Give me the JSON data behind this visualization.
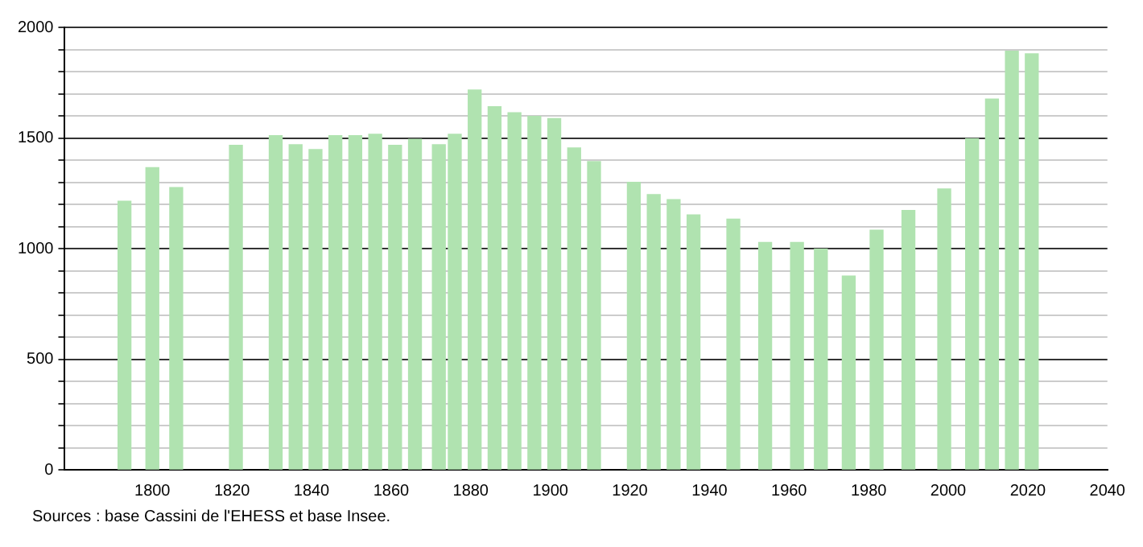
{
  "chart_data": {
    "type": "bar",
    "color": "#b0e3b0",
    "x": [
      1793,
      1800,
      1806,
      1821,
      1831,
      1836,
      1841,
      1846,
      1851,
      1856,
      1861,
      1866,
      1872,
      1876,
      1881,
      1886,
      1891,
      1896,
      1901,
      1906,
      1911,
      1921,
      1926,
      1931,
      1936,
      1946,
      1954,
      1962,
      1968,
      1975,
      1982,
      1990,
      1999,
      2006,
      2011,
      2016,
      2021
    ],
    "values": [
      1214,
      1366,
      1276,
      1467,
      1510,
      1469,
      1448,
      1510,
      1510,
      1517,
      1467,
      1494,
      1469,
      1517,
      1717,
      1641,
      1614,
      1598,
      1588,
      1455,
      1393,
      1299,
      1244,
      1221,
      1152,
      1133,
      1028,
      1028,
      998,
      876,
      1083,
      1172,
      1269,
      1497,
      1676,
      1892,
      1880
    ],
    "xlim": [
      1778,
      2040
    ],
    "xticks": [
      1800,
      1820,
      1840,
      1860,
      1880,
      1900,
      1920,
      1940,
      1960,
      1980,
      2000,
      2020,
      2040
    ],
    "ylim": [
      0,
      2000
    ],
    "yticks": [
      0,
      {
        "value": 100,
        "label": null
      },
      {
        "value": 200,
        "label": null
      },
      {
        "value": 300,
        "label": null
      },
      {
        "value": 400,
        "label": null
      },
      500,
      {
        "value": 600,
        "label": null
      },
      {
        "value": 700,
        "label": null
      },
      {
        "value": 800,
        "label": null
      },
      {
        "value": 900,
        "label": null
      },
      1000,
      {
        "value": 1100,
        "label": null
      },
      {
        "value": 1200,
        "label": null
      },
      {
        "value": 1300,
        "label": null
      },
      {
        "value": 1400,
        "label": null
      },
      1500,
      {
        "value": 1600,
        "label": null
      },
      {
        "value": 1700,
        "label": null
      },
      {
        "value": 1800,
        "label": null
      },
      {
        "value": 1900,
        "label": null
      },
      2000
    ],
    "grid": "y",
    "annotations": [
      "Sources : base Cassini de l'EHESS et base Insee."
    ]
  }
}
